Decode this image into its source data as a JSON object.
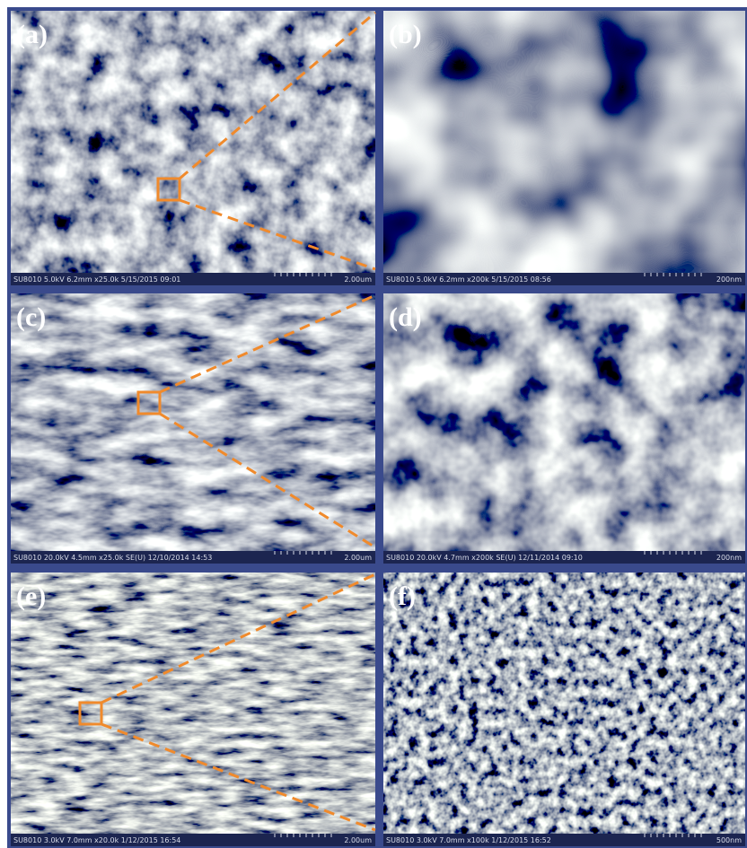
{
  "panels": [
    {
      "label": "(a)",
      "info": "SU8010 5.0kV 6.2mm x25.0k 5/15/2015 09:01",
      "scale": "2.00um"
    },
    {
      "label": "(b)",
      "info": "SU8010 5.0kV 6.2mm x200k 5/15/2015 08:56",
      "scale": "200nm"
    },
    {
      "label": "(c)",
      "info": "SU8010 20.0kV 4.5mm x25.0k SE(U) 12/10/2014 14:53",
      "scale": "2.00um"
    },
    {
      "label": "(d)",
      "info": "SU8010 20.0kV 4.7mm x200k SE(U) 12/11/2014 09:10",
      "scale": "200nm"
    },
    {
      "label": "(e)",
      "info": "SU8010 3.0kV 7.0mm x20.0k 1/12/2015 16:54",
      "scale": "2.00um"
    },
    {
      "label": "(f)",
      "info": "SU8010 3.0kV 7.0mm x100k 1/12/2015 16:52",
      "scale": "500nm"
    }
  ]
}
